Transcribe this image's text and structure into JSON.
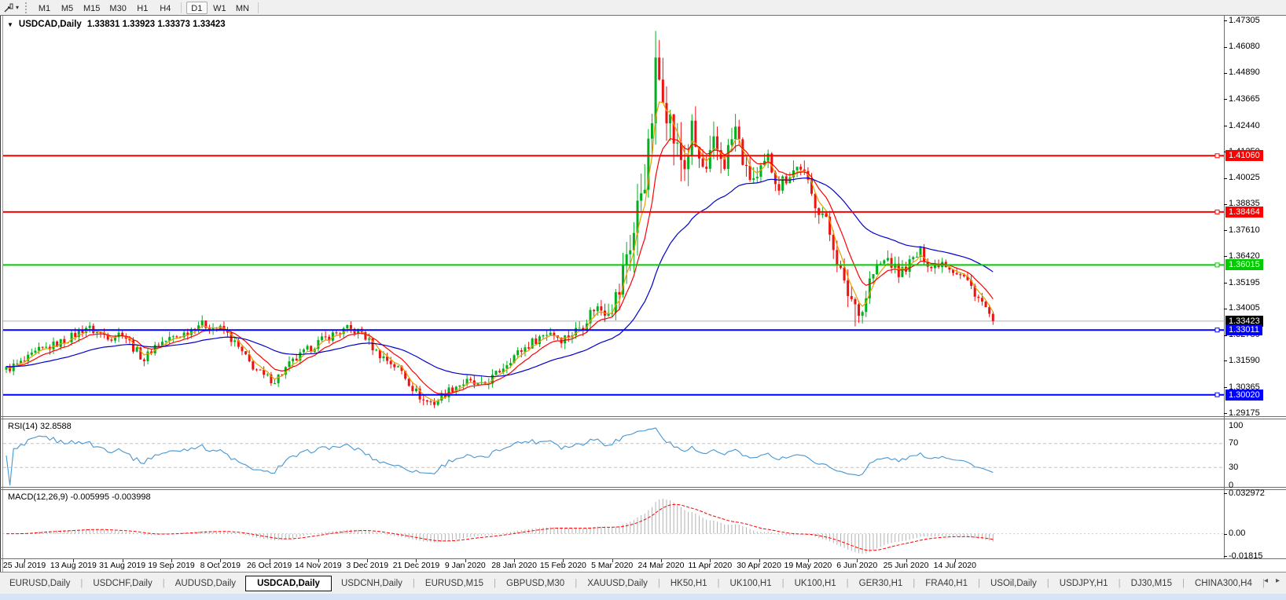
{
  "toolbar": {
    "dropdown_caret": "▾",
    "timeframes": [
      "M1",
      "M5",
      "M15",
      "M30",
      "H1",
      "H4",
      "D1",
      "W1",
      "MN"
    ],
    "active_timeframe": "D1"
  },
  "chart_header": {
    "collapse_icon": "▼",
    "symbol_title": "USDCAD,Daily",
    "ohlc_text": "1.33831 1.33923 1.33373 1.33423"
  },
  "indicator_labels": {
    "rsi": "RSI(14) 32.8588",
    "macd": "MACD(12,26,9) -0.005995 -0.003998"
  },
  "tabs": {
    "items": [
      "EURUSD,Daily",
      "USDCHF,Daily",
      "AUDUSD,Daily",
      "USDCAD,Daily",
      "USDCNH,Daily",
      "EURUSD,M15",
      "GBPUSD,M30",
      "XAUUSD,Daily",
      "HK50,H1",
      "UK100,H1",
      "UK100,H1",
      "GER30,H1",
      "FRA40,H1",
      "USOil,Daily",
      "USDJPY,H1",
      "DJ30,M15",
      "CHINA300,H4"
    ],
    "active": "USDCAD,Daily",
    "scroll_left_icon": "◂",
    "scroll_right_icon": "▸"
  },
  "chart_data": {
    "type": "candlestick",
    "symbol": "USDCAD",
    "timeframe": "Daily",
    "ohlc_display": {
      "open": "1.33831",
      "high": "1.33923",
      "low": "1.33373",
      "close": "1.33423"
    },
    "price_axis": {
      "range": [
        1.2903,
        1.4749
      ],
      "ticks": [
        "1.47305",
        "1.46080",
        "1.44890",
        "1.43665",
        "1.42440",
        "1.41250",
        "1.40025",
        "1.38835",
        "1.37610",
        "1.36420",
        "1.35195",
        "1.34005",
        "1.32780",
        "1.31590",
        "1.30365",
        "1.29175"
      ]
    },
    "price_badges": [
      {
        "text": "1.41060",
        "value": 1.4106,
        "bg": "#ff0000"
      },
      {
        "text": "1.38464",
        "value": 1.38464,
        "bg": "#ff0000"
      },
      {
        "text": "1.36015",
        "value": 1.36015,
        "bg": "#00cc00"
      },
      {
        "text": "1.33423",
        "value": 1.33423,
        "bg": "#000000"
      },
      {
        "text": "1.33011",
        "value": 1.33011,
        "bg": "#0000ff"
      },
      {
        "text": "1.30020",
        "value": 1.3002,
        "bg": "#0000ff"
      }
    ],
    "hlines": [
      {
        "value": 1.4106,
        "color": "#ff0000",
        "width": 2
      },
      {
        "value": 1.38464,
        "color": "#ff0000",
        "width": 2
      },
      {
        "value": 1.36015,
        "color": "#00cc00",
        "width": 2
      },
      {
        "value": 1.33011,
        "color": "#0000ff",
        "width": 2
      },
      {
        "value": 1.3002,
        "color": "#0000ff",
        "width": 2
      }
    ],
    "bid_line": {
      "value": 1.33423,
      "color": "#b0b0b0"
    },
    "x_labels": [
      "25 Jul 2019",
      "13 Aug 2019",
      "31 Aug 2019",
      "19 Sep 2019",
      "8 Oct 2019",
      "26 Oct 2019",
      "14 Nov 2019",
      "3 Dec 2019",
      "21 Dec 2019",
      "9 Jan 2020",
      "28 Jan 2020",
      "15 Feb 2020",
      "5 Mar 2020",
      "24 Mar 2020",
      "11 Apr 2020",
      "30 Apr 2020",
      "19 May 2020",
      "6 Jun 2020",
      "25 Jun 2020",
      "14 Jul 2020"
    ],
    "bars": 273,
    "bars_per_label": 13.5,
    "first_label_bar": 5,
    "last_close": 1.33423,
    "peak": {
      "bar": 179,
      "high": 1.4668
    },
    "trough": {
      "bar": 234,
      "low": 1.3318
    },
    "close_path": [
      [
        0,
        1.312
      ],
      [
        5,
        1.3155
      ],
      [
        9,
        1.3205
      ],
      [
        13,
        1.323
      ],
      [
        18,
        1.327
      ],
      [
        22,
        1.3315
      ],
      [
        25,
        1.329
      ],
      [
        29,
        1.327
      ],
      [
        32,
        1.329
      ],
      [
        35,
        1.322
      ],
      [
        38,
        1.3165
      ],
      [
        41,
        1.323
      ],
      [
        45,
        1.326
      ],
      [
        49,
        1.3285
      ],
      [
        53,
        1.333
      ],
      [
        57,
        1.3315
      ],
      [
        60,
        1.33
      ],
      [
        63,
        1.324
      ],
      [
        67,
        1.315
      ],
      [
        71,
        1.3085
      ],
      [
        74,
        1.307
      ],
      [
        78,
        1.314
      ],
      [
        82,
        1.3195
      ],
      [
        86,
        1.3245
      ],
      [
        90,
        1.328
      ],
      [
        94,
        1.3305
      ],
      [
        98,
        1.329
      ],
      [
        102,
        1.32
      ],
      [
        106,
        1.315
      ],
      [
        109,
        1.311
      ],
      [
        112,
        1.3035
      ],
      [
        115,
        1.2975
      ],
      [
        118,
        1.2965
      ],
      [
        121,
        1.301
      ],
      [
        124,
        1.3045
      ],
      [
        127,
        1.306
      ],
      [
        131,
        1.304
      ],
      [
        135,
        1.3095
      ],
      [
        139,
        1.317
      ],
      [
        143,
        1.322
      ],
      [
        147,
        1.327
      ],
      [
        150,
        1.3295
      ],
      [
        153,
        1.326
      ],
      [
        156,
        1.3285
      ],
      [
        159,
        1.333
      ],
      [
        162,
        1.3405
      ],
      [
        165,
        1.3395
      ],
      [
        167,
        1.342
      ],
      [
        169,
        1.348
      ],
      [
        171,
        1.366
      ],
      [
        173,
        1.375
      ],
      [
        175,
        1.396
      ],
      [
        177,
        1.41
      ],
      [
        179,
        1.448
      ],
      [
        181,
        1.444
      ],
      [
        183,
        1.426
      ],
      [
        185,
        1.412
      ],
      [
        187,
        1.406
      ],
      [
        189,
        1.421
      ],
      [
        191,
        1.408
      ],
      [
        193,
        1.401
      ],
      [
        195,
        1.415
      ],
      [
        198,
        1.408
      ],
      [
        201,
        1.423
      ],
      [
        204,
        1.402
      ],
      [
        207,
        1.399
      ],
      [
        210,
        1.409
      ],
      [
        213,
        1.397
      ],
      [
        216,
        1.403
      ],
      [
        219,
        1.406
      ],
      [
        222,
        1.392
      ],
      [
        225,
        1.384
      ],
      [
        228,
        1.37
      ],
      [
        231,
        1.35
      ],
      [
        234,
        1.342
      ],
      [
        236,
        1.339
      ],
      [
        238,
        1.353
      ],
      [
        240,
        1.359
      ],
      [
        243,
        1.363
      ],
      [
        246,
        1.356
      ],
      [
        249,
        1.361
      ],
      [
        252,
        1.366
      ],
      [
        255,
        1.359
      ],
      [
        258,
        1.362
      ],
      [
        261,
        1.358
      ],
      [
        264,
        1.3545
      ],
      [
        266,
        1.35
      ],
      [
        268,
        1.345
      ],
      [
        270,
        1.34
      ],
      [
        272,
        1.33423
      ]
    ],
    "volatility_path": [
      [
        0,
        0.0045
      ],
      [
        105,
        0.0045
      ],
      [
        155,
        0.005
      ],
      [
        165,
        0.008
      ],
      [
        169,
        0.014
      ],
      [
        175,
        0.021
      ],
      [
        179,
        0.0245
      ],
      [
        183,
        0.02
      ],
      [
        189,
        0.016
      ],
      [
        195,
        0.013
      ],
      [
        205,
        0.01
      ],
      [
        220,
        0.008
      ],
      [
        233,
        0.01
      ],
      [
        240,
        0.007
      ],
      [
        255,
        0.005
      ],
      [
        272,
        0.005
      ]
    ],
    "candle_colors": {
      "up": "#00b01e",
      "down": "#ee1111"
    },
    "moving_averages": [
      {
        "name": "fast",
        "period": 4,
        "color": "#e8a000"
      },
      {
        "name": "medium",
        "period": 10,
        "color": "#ff0000"
      },
      {
        "name": "slow",
        "period": 40,
        "color": "#0000cc"
      }
    ],
    "rsi": {
      "period": 14,
      "current": "32.8588",
      "color": "#4696d2",
      "levels": [
        70,
        30
      ],
      "axis_ticks": [
        {
          "v": 100,
          "label": "100"
        },
        {
          "v": 70,
          "label": "70"
        },
        {
          "v": 30,
          "label": "30"
        },
        {
          "v": 0,
          "label": "0"
        }
      ]
    },
    "macd": {
      "params": "12,26,9",
      "main": "-0.005995",
      "signal": "-0.003998",
      "histogram_color": "#b2b2b2",
      "signal_color": "#ff0000",
      "axis_ticks": [
        {
          "v": 0.032972,
          "label": "0.032972"
        },
        {
          "v": 0,
          "label": "0.00"
        },
        {
          "v": -0.01815,
          "label": "-0.01815"
        }
      ],
      "range": [
        -0.01815,
        0.033
      ]
    }
  }
}
